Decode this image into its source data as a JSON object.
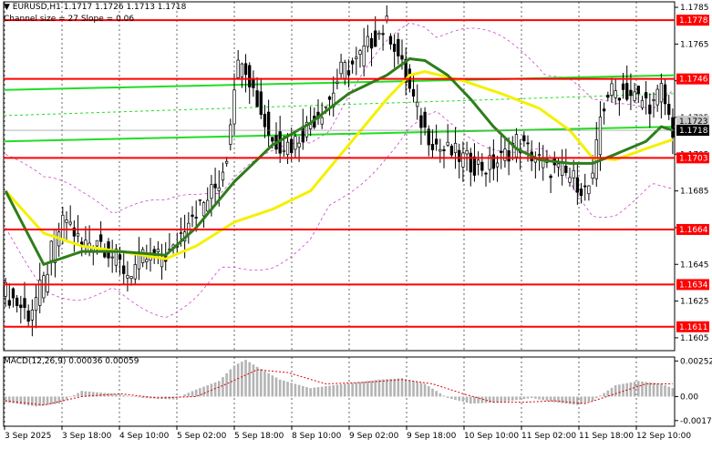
{
  "header": {
    "symbol_line": "▼ EURUSD,H1  1.1717 1.1726 1.1713 1.1718",
    "channel_line": "Channel size = 27 Slope = 0.06"
  },
  "macd_label": "MACD(12,26,9) 0.00036 0.00059",
  "colors": {
    "level": "#ff0000",
    "ma_fast": "#2e7d1a",
    "ma_slow": "#f5f000",
    "channel": "#22dd22",
    "envelope": "#cc44cc",
    "candle": "#000000",
    "macd_hist": "#b4b4b4",
    "signal": "#dd0000",
    "grid": "#000000"
  },
  "chart_data": [
    {
      "type": "candlestick",
      "instrument": "EURUSD",
      "timeframe": "H1",
      "ylim": [
        1.1598,
        1.1788
      ],
      "y_ticks": [
        1.1785,
        1.1765,
        1.1745,
        1.1725,
        1.1705,
        1.1685,
        1.1665,
        1.1645,
        1.1625,
        1.1605
      ],
      "x_ticks": [
        "3 Sep 2025",
        "3 Sep 18:00",
        "4 Sep 10:00",
        "5 Sep 02:00",
        "5 Sep 18:00",
        "8 Sep 10:00",
        "9 Sep 02:00",
        "9 Sep 18:00",
        "10 Sep 10:00",
        "11 Sep 02:00",
        "11 Sep 18:00",
        "12 Sep 10:00"
      ],
      "levels": [
        1.1778,
        1.1746,
        1.1703,
        1.1664,
        1.1634,
        1.1611
      ],
      "current_price": 1.1718,
      "current_price_2": 1.1723,
      "grid": true,
      "ohlc_anchor_close": [
        [
          0,
          1.163
        ],
        [
          6,
          1.1618
        ],
        [
          10,
          1.1635
        ],
        [
          13,
          1.166
        ],
        [
          16,
          1.167
        ],
        [
          20,
          1.1655
        ],
        [
          24,
          1.166
        ],
        [
          28,
          1.165
        ],
        [
          32,
          1.164
        ],
        [
          36,
          1.1648
        ],
        [
          40,
          1.1648
        ],
        [
          44,
          1.1652
        ],
        [
          48,
          1.1672
        ],
        [
          52,
          1.1678
        ],
        [
          56,
          1.169
        ],
        [
          58,
          1.1705
        ],
        [
          60,
          1.1745
        ],
        [
          62,
          1.176
        ],
        [
          65,
          1.174
        ],
        [
          68,
          1.1722
        ],
        [
          70,
          1.1712
        ],
        [
          75,
          1.171
        ],
        [
          80,
          1.1722
        ],
        [
          85,
          1.1735
        ],
        [
          88,
          1.175
        ],
        [
          92,
          1.1755
        ],
        [
          96,
          1.1767
        ],
        [
          100,
          1.1775
        ],
        [
          102,
          1.1765
        ],
        [
          104,
          1.1752
        ],
        [
          106,
          1.174
        ],
        [
          108,
          1.1728
        ],
        [
          110,
          1.1718
        ],
        [
          114,
          1.1708
        ],
        [
          118,
          1.1705
        ],
        [
          122,
          1.17
        ],
        [
          126,
          1.1698
        ],
        [
          130,
          1.1702
        ],
        [
          134,
          1.1712
        ],
        [
          138,
          1.1705
        ],
        [
          142,
          1.1698
        ],
        [
          146,
          1.1695
        ],
        [
          150,
          1.169
        ],
        [
          152,
          1.1685
        ],
        [
          154,
          1.169
        ],
        [
          156,
          1.1725
        ],
        [
          158,
          1.1738
        ],
        [
          162,
          1.174
        ],
        [
          166,
          1.1735
        ],
        [
          170,
          1.1732
        ],
        [
          172,
          1.174
        ],
        [
          174,
          1.1725
        ],
        [
          175,
          1.1718
        ]
      ],
      "ma_fast_anchor": [
        [
          0,
          1.1685
        ],
        [
          10,
          1.1645
        ],
        [
          20,
          1.1652
        ],
        [
          30,
          1.1652
        ],
        [
          42,
          1.165
        ],
        [
          50,
          1.1665
        ],
        [
          60,
          1.169
        ],
        [
          70,
          1.171
        ],
        [
          80,
          1.1722
        ],
        [
          90,
          1.1738
        ],
        [
          100,
          1.1748
        ],
        [
          106,
          1.1757
        ],
        [
          110,
          1.1756
        ],
        [
          116,
          1.1748
        ],
        [
          122,
          1.1735
        ],
        [
          128,
          1.172
        ],
        [
          134,
          1.1708
        ],
        [
          140,
          1.1702
        ],
        [
          148,
          1.17
        ],
        [
          154,
          1.17
        ],
        [
          160,
          1.1705
        ],
        [
          168,
          1.1712
        ],
        [
          172,
          1.172
        ],
        [
          175,
          1.1718
        ]
      ],
      "ma_slow_anchor": [
        [
          0,
          1.1685
        ],
        [
          10,
          1.1662
        ],
        [
          20,
          1.1655
        ],
        [
          30,
          1.1652
        ],
        [
          42,
          1.1648
        ],
        [
          50,
          1.1655
        ],
        [
          60,
          1.1668
        ],
        [
          70,
          1.1675
        ],
        [
          80,
          1.1685
        ],
        [
          90,
          1.171
        ],
        [
          100,
          1.1735
        ],
        [
          106,
          1.1748
        ],
        [
          110,
          1.175
        ],
        [
          120,
          1.1745
        ],
        [
          130,
          1.1738
        ],
        [
          140,
          1.173
        ],
        [
          148,
          1.1718
        ],
        [
          154,
          1.1703
        ],
        [
          160,
          1.1702
        ],
        [
          168,
          1.1708
        ],
        [
          175,
          1.1713
        ]
      ],
      "channel": {
        "upper": [
          1.174,
          1.1748
        ],
        "middle": [
          1.1726,
          1.1738
        ],
        "lower": [
          1.1712,
          1.172
        ],
        "size": 27,
        "slope": 0.06
      }
    },
    {
      "type": "bar",
      "name": "MACD(12,26,9)",
      "values_shown": [
        0.00036,
        0.00059
      ],
      "ylim": [
        -0.0021,
        0.0028
      ],
      "y_ticks": [
        0.00252,
        0.0,
        -0.0017
      ],
      "hist_anchor": [
        [
          0,
          -0.0004
        ],
        [
          8,
          -0.0007
        ],
        [
          14,
          -0.0005
        ],
        [
          20,
          0.0004
        ],
        [
          28,
          0.0002
        ],
        [
          36,
          -0.0001
        ],
        [
          44,
          -0.0002
        ],
        [
          50,
          0.0005
        ],
        [
          56,
          0.0011
        ],
        [
          60,
          0.0022
        ],
        [
          63,
          0.0026
        ],
        [
          66,
          0.0021
        ],
        [
          72,
          0.0012
        ],
        [
          80,
          0.0006
        ],
        [
          86,
          0.0008
        ],
        [
          92,
          0.001
        ],
        [
          98,
          0.0012
        ],
        [
          104,
          0.0013
        ],
        [
          110,
          0.0009
        ],
        [
          116,
          -0.0001
        ],
        [
          122,
          -0.0005
        ],
        [
          130,
          -0.0004
        ],
        [
          138,
          -0.0001
        ],
        [
          144,
          -0.0004
        ],
        [
          150,
          -0.0006
        ],
        [
          154,
          -0.0003
        ],
        [
          160,
          0.0008
        ],
        [
          166,
          0.0011
        ],
        [
          172,
          0.0009
        ],
        [
          175,
          0.0006
        ]
      ],
      "signal_anchor": [
        [
          0,
          -0.0003
        ],
        [
          10,
          -0.0006
        ],
        [
          20,
          0.0
        ],
        [
          30,
          0.0002
        ],
        [
          40,
          -0.0001
        ],
        [
          50,
          0.0
        ],
        [
          58,
          0.0009
        ],
        [
          66,
          0.0019
        ],
        [
          74,
          0.0017
        ],
        [
          84,
          0.0009
        ],
        [
          94,
          0.001
        ],
        [
          104,
          0.0012
        ],
        [
          112,
          0.0009
        ],
        [
          120,
          0.0002
        ],
        [
          128,
          -0.0004
        ],
        [
          136,
          -0.0004
        ],
        [
          144,
          -0.0003
        ],
        [
          152,
          -0.0005
        ],
        [
          160,
          0.0002
        ],
        [
          168,
          0.0009
        ],
        [
          175,
          0.0009
        ]
      ]
    }
  ]
}
